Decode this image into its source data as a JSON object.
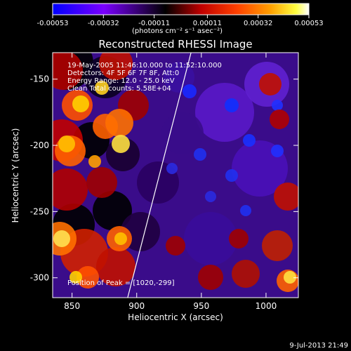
{
  "chart_data": {
    "type": "heatmap",
    "title": "Reconstructed RHESSI Image",
    "xlabel": "Heliocentric X (arcsec)",
    "ylabel": "Heliocentric Y (arcsec)",
    "xlim": [
      835,
      1025
    ],
    "ylim": [
      -315,
      -130
    ],
    "x_ticks": [
      850,
      900,
      950,
      1000
    ],
    "y_ticks": [
      -150,
      -200,
      -250,
      -300
    ],
    "colorbar": {
      "ticks": [
        "-0.00053",
        "-0.00032",
        "-0.00011",
        "0.00011",
        "0.00032",
        "0.00053"
      ],
      "unit_label": "(photons cm⁻² s⁻¹ asec⁻²)",
      "range": [
        -0.00053,
        0.00053
      ],
      "colors": [
        "#0000ff",
        "#8000ff",
        "#000000",
        "#b00000",
        "#ff4000",
        "#ff9000",
        "#ffff00",
        "#ffffff"
      ]
    },
    "info_lines": [
      "19-May-2005 11:46:10.000 to 11:52:10.000",
      "Detectors: 4F 5F 6F 7F 8F, Att:0",
      "Energy Range: 12.0 - 25.0 keV",
      "Clean    Total counts: 5.58E+04"
    ],
    "peak_label": "Position of Peak = [1020,-299]",
    "peak_position": [
      1020,
      -299
    ],
    "limb_line": [
      [
        893,
        -315
      ],
      [
        942,
        -130
      ]
    ]
  },
  "footer": {
    "timestamp": "9-Jul-2013 21:49"
  }
}
